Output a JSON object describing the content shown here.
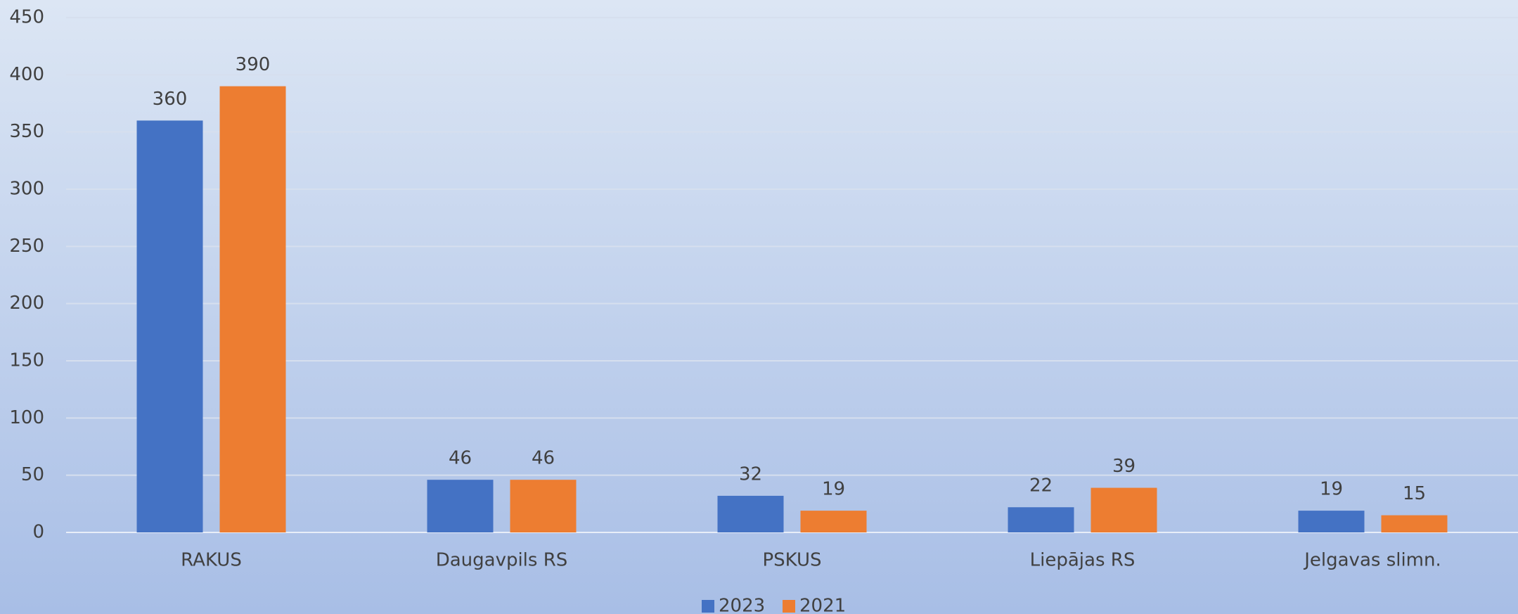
{
  "chart_data": {
    "type": "bar",
    "categories": [
      "RAKUS",
      "Daugavpils RS",
      "PSKUS",
      "Liepājas RS",
      "Jelgavas slimn."
    ],
    "series": [
      {
        "name": "2023",
        "color": "#4472c4",
        "values": [
          360,
          46,
          32,
          22,
          19
        ]
      },
      {
        "name": "2021",
        "color": "#ed7d31",
        "values": [
          390,
          46,
          19,
          39,
          15
        ]
      }
    ],
    "ylim": [
      0,
      450
    ],
    "yticks": [
      0,
      50,
      100,
      150,
      200,
      250,
      300,
      350,
      400,
      450
    ],
    "grid": true,
    "legend": "bottom"
  }
}
